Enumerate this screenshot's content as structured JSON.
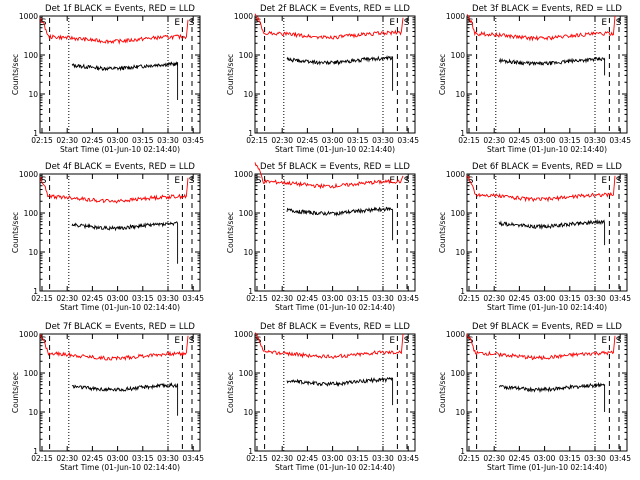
{
  "chart_data": [
    {
      "type": "line",
      "title": "Det 1f BLACK = Events, RED = LLD",
      "xlabel": "Start Time (01-Jun-10 02:14:40)",
      "ylabel": "Counts/sec",
      "xticks": [
        "02:15",
        "02:30",
        "02:45",
        "03:00",
        "03:15",
        "03:30",
        "03:45"
      ],
      "yticks": [
        "1",
        "10",
        "100",
        "1000"
      ],
      "ylim": [
        1,
        1000
      ],
      "yscale": "log",
      "markers": {
        "S_left": "S",
        "E": "E",
        "S_right": "S"
      },
      "series": [
        {
          "name": "Events",
          "color": "#000000",
          "start": 0.2,
          "end": 0.86,
          "level": 60,
          "drop": 7
        },
        {
          "name": "LLD",
          "color": "#ff0000",
          "start": 0,
          "end": 0.915,
          "level": 300,
          "jump": 800
        }
      ]
    },
    {
      "type": "line",
      "title": "Det 2f BLACK = Events, RED = LLD",
      "xlabel": "Start Time (01-Jun-10 02:14:40)",
      "ylabel": "Counts/sec",
      "xticks": [
        "02:15",
        "02:30",
        "02:45",
        "03:00",
        "03:15",
        "03:30",
        "03:45"
      ],
      "yticks": [
        "1",
        "10",
        "100",
        "1000"
      ],
      "ylim": [
        1,
        1000
      ],
      "yscale": "log",
      "markers": {
        "S_left": "S",
        "E": "E",
        "S_right": "S"
      },
      "series": [
        {
          "name": "Events",
          "color": "#000000",
          "start": 0.2,
          "end": 0.86,
          "level": 85,
          "drop": 12
        },
        {
          "name": "LLD",
          "color": "#ff0000",
          "start": 0,
          "end": 0.915,
          "level": 380,
          "jump": 900
        }
      ]
    },
    {
      "type": "line",
      "title": "Det 3f BLACK = Events, RED = LLD",
      "xlabel": "Start Time (01-Jun-10 02:14:40)",
      "ylabel": "Counts/sec",
      "xticks": [
        "02:15",
        "02:30",
        "02:45",
        "03:00",
        "03:15",
        "03:30",
        "03:45"
      ],
      "yticks": [
        "1",
        "10",
        "100",
        "1000"
      ],
      "ylim": [
        1,
        1000
      ],
      "yscale": "log",
      "markers": {
        "S_left": "S",
        "E": "E",
        "S_right": "S"
      },
      "series": [
        {
          "name": "Events",
          "color": "#000000",
          "start": 0.2,
          "end": 0.86,
          "level": 80,
          "drop": 30
        },
        {
          "name": "LLD",
          "color": "#ff0000",
          "start": 0,
          "end": 0.915,
          "level": 360,
          "jump": 1000
        }
      ]
    },
    {
      "type": "line",
      "title": "Det 4f BLACK = Events, RED = LLD",
      "xlabel": "Start Time (01-Jun-10 02:14:40)",
      "ylabel": "Counts/sec",
      "xticks": [
        "02:15",
        "02:30",
        "02:45",
        "03:00",
        "03:15",
        "03:30",
        "03:45"
      ],
      "yticks": [
        "1",
        "10",
        "100",
        "1000"
      ],
      "ylim": [
        1,
        1000
      ],
      "yscale": "log",
      "markers": {
        "S_left": "S",
        "E": "E",
        "S_right": "S"
      },
      "series": [
        {
          "name": "Events",
          "color": "#000000",
          "start": 0.2,
          "end": 0.86,
          "level": 55,
          "drop": 5
        },
        {
          "name": "LLD",
          "color": "#ff0000",
          "start": 0,
          "end": 0.915,
          "level": 270,
          "jump": 800
        }
      ]
    },
    {
      "type": "line",
      "title": "Det 5f BLACK = Events, RED = LLD",
      "xlabel": "Start Time (01-Jun-10 02:14:40)",
      "ylabel": "Counts/sec",
      "xticks": [
        "02:15",
        "02:30",
        "02:45",
        "03:00",
        "03:15",
        "03:30",
        "03:45"
      ],
      "yticks": [
        "1",
        "10",
        "100",
        "1000"
      ],
      "ylim": [
        1,
        1000
      ],
      "yscale": "log",
      "markers": {
        "S_left": "S",
        "E": "E",
        "S_right": "S"
      },
      "series": [
        {
          "name": "Events",
          "color": "#000000",
          "start": 0.2,
          "end": 0.86,
          "level": 130,
          "drop": 20
        },
        {
          "name": "LLD",
          "color": "#ff0000",
          "start": 0,
          "end": 0.915,
          "level": 650,
          "jump": 900
        }
      ]
    },
    {
      "type": "line",
      "title": "Det 6f BLACK = Events, RED = LLD",
      "xlabel": "Start Time (01-Jun-10 02:14:40)",
      "ylabel": "Counts/sec",
      "xticks": [
        "02:15",
        "02:30",
        "02:45",
        "03:00",
        "03:15",
        "03:30",
        "03:45"
      ],
      "yticks": [
        "1",
        "10",
        "100",
        "1000"
      ],
      "ylim": [
        1,
        1000
      ],
      "yscale": "log",
      "markers": {
        "S_left": "S",
        "E": "E",
        "S_right": "S"
      },
      "series": [
        {
          "name": "Events",
          "color": "#000000",
          "start": 0.2,
          "end": 0.86,
          "level": 60,
          "drop": 15
        },
        {
          "name": "LLD",
          "color": "#ff0000",
          "start": 0,
          "end": 0.915,
          "level": 300,
          "jump": 900
        }
      ]
    },
    {
      "type": "line",
      "title": "Det 7f BLACK = Events, RED = LLD",
      "xlabel": "Start Time (01-Jun-10 02:14:40)",
      "ylabel": "Counts/sec",
      "xticks": [
        "02:15",
        "02:30",
        "02:45",
        "03:00",
        "03:15",
        "03:30",
        "03:45"
      ],
      "yticks": [
        "1",
        "10",
        "100",
        "1000"
      ],
      "ylim": [
        1,
        1000
      ],
      "yscale": "log",
      "markers": {
        "S_left": "S",
        "E": "E",
        "S_right": "S"
      },
      "series": [
        {
          "name": "Events",
          "color": "#000000",
          "start": 0.2,
          "end": 0.86,
          "level": 50,
          "drop": 8
        },
        {
          "name": "LLD",
          "color": "#ff0000",
          "start": 0,
          "end": 0.915,
          "level": 320,
          "jump": 900
        }
      ]
    },
    {
      "type": "line",
      "title": "Det 8f BLACK = Events, RED = LLD",
      "xlabel": "Start Time (01-Jun-10 02:14:40)",
      "ylabel": "Counts/sec",
      "xticks": [
        "02:15",
        "02:30",
        "02:45",
        "03:00",
        "03:15",
        "03:30",
        "03:45"
      ],
      "yticks": [
        "1",
        "10",
        "100",
        "1000"
      ],
      "ylim": [
        1,
        1000
      ],
      "yscale": "log",
      "markers": {
        "S_left": "S",
        "E": "E",
        "S_right": "S"
      },
      "series": [
        {
          "name": "Events",
          "color": "#000000",
          "start": 0.2,
          "end": 0.86,
          "level": 70,
          "drop": 15
        },
        {
          "name": "LLD",
          "color": "#ff0000",
          "start": 0,
          "end": 0.915,
          "level": 350,
          "jump": 1000
        }
      ]
    },
    {
      "type": "line",
      "title": "Det 9f BLACK = Events, RED = LLD",
      "xlabel": "Start Time (01-Jun-10 02:14:40)",
      "ylabel": "Counts/sec",
      "xticks": [
        "02:15",
        "02:30",
        "02:45",
        "03:00",
        "03:15",
        "03:30",
        "03:45"
      ],
      "yticks": [
        "1",
        "10",
        "100",
        "1000"
      ],
      "ylim": [
        1,
        1000
      ],
      "yscale": "log",
      "markers": {
        "S_left": "S",
        "E": "E",
        "S_right": "S"
      },
      "series": [
        {
          "name": "Events",
          "color": "#000000",
          "start": 0.2,
          "end": 0.86,
          "level": 50,
          "drop": 10
        },
        {
          "name": "LLD",
          "color": "#ff0000",
          "start": 0,
          "end": 0.915,
          "level": 330,
          "jump": 900
        }
      ]
    }
  ]
}
